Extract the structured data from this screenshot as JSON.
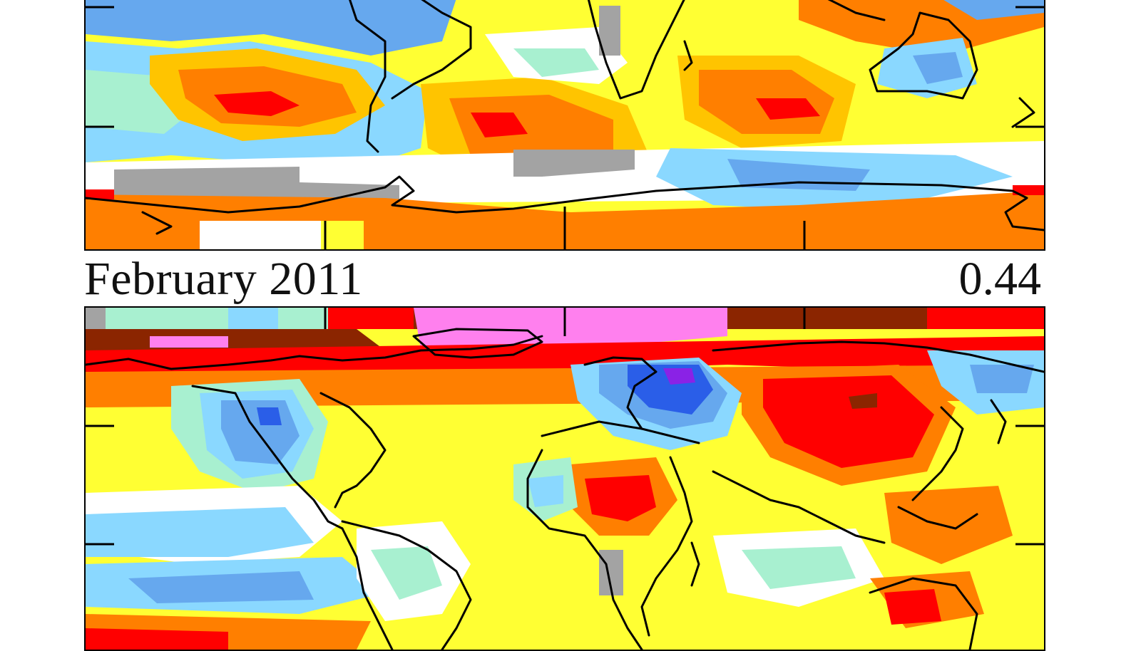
{
  "panels": [
    {
      "title": "",
      "value": ""
    },
    {
      "title": "February 2011",
      "value": "0.44"
    }
  ],
  "colors": {
    "missing": "#a3a3a3",
    "neutral": "#ffffff",
    "cool_1": "#a8f0d0",
    "cool_2": "#8ad8ff",
    "cool_3": "#66a8ee",
    "cool_4": "#2a5ee8",
    "cool_5": "#8a22e6",
    "warm_1": "#ffff33",
    "warm_2": "#ffc400",
    "warm_3": "#ff7f00",
    "warm_4": "#ff0000",
    "warm_5": "#8b2500",
    "warm_6": "#ff80ee"
  }
}
